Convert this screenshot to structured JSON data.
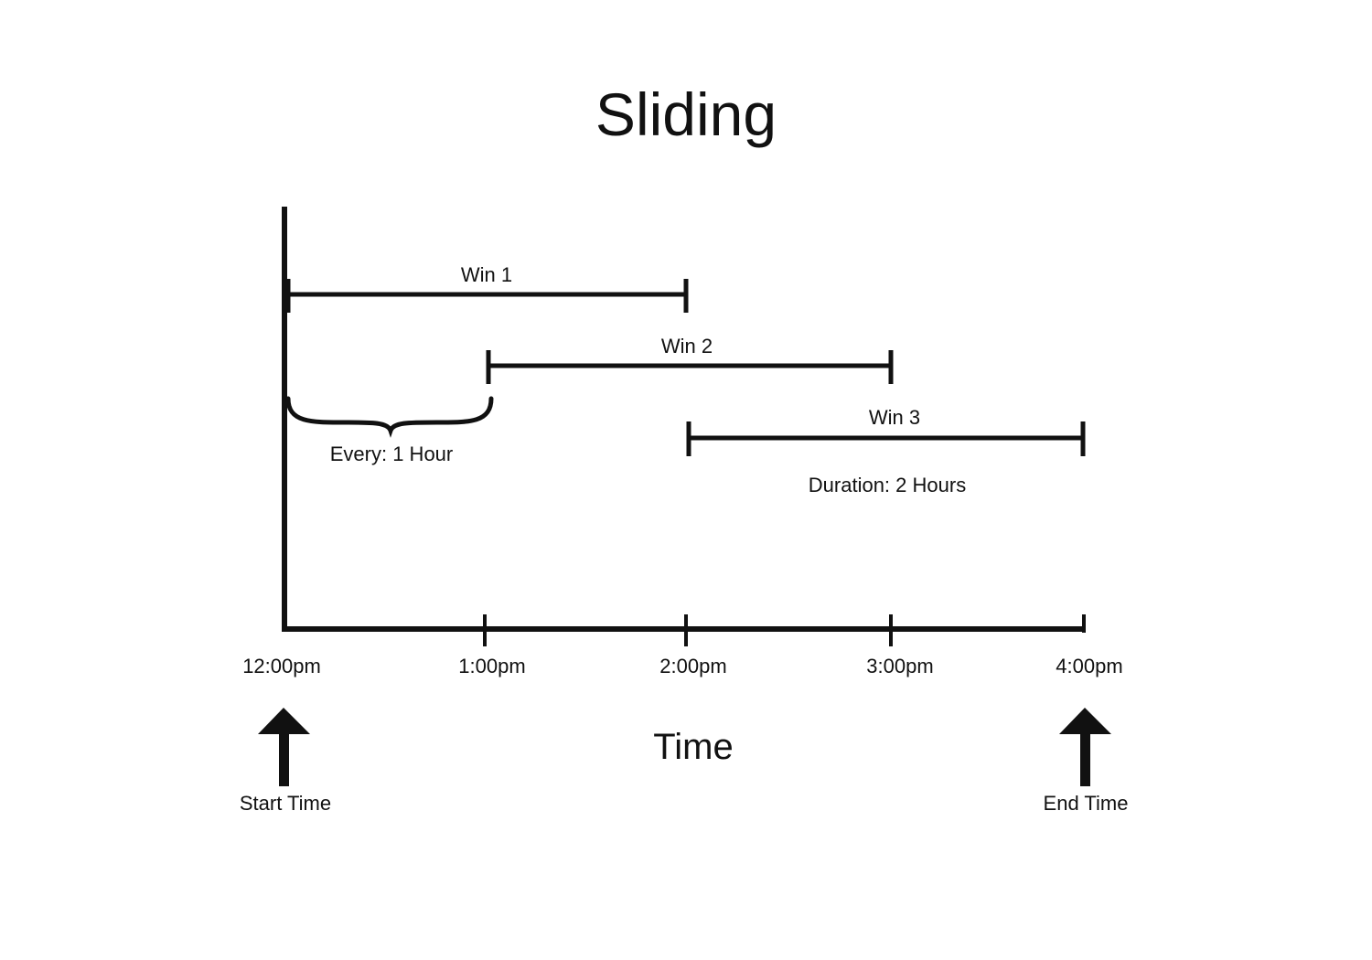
{
  "title": "Sliding",
  "axis": {
    "xlabel": "Time",
    "ticks": [
      "12:00pm",
      "1:00pm",
      "2:00pm",
      "3:00pm",
      "4:00pm"
    ]
  },
  "windows": [
    {
      "label": "Win 1",
      "start": "12:00pm",
      "end": "2:00pm"
    },
    {
      "label": "Win 2",
      "start": "1:00pm",
      "end": "3:00pm"
    },
    {
      "label": "Win 3",
      "start": "2:00pm",
      "end": "4:00pm"
    }
  ],
  "annotations": {
    "every": "Every: 1 Hour",
    "duration": "Duration: 2 Hours"
  },
  "markers": {
    "start": "Start Time",
    "end": "End Time"
  },
  "colors": {
    "ink": "#111111",
    "background": "#ffffff"
  }
}
